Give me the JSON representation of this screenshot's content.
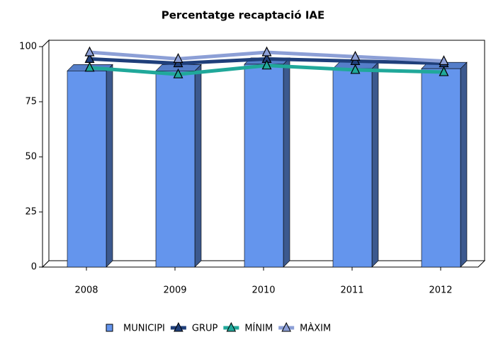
{
  "chart_data": {
    "type": "bar",
    "title": "Percentatge recaptació IAE",
    "categories": [
      "2008",
      "2009",
      "2010",
      "2011",
      "2012"
    ],
    "series": [
      {
        "name": "MUNICIPI",
        "color": "#6495ed",
        "values": [
          89,
          89,
          92,
          90,
          90
        ]
      },
      {
        "name": "GRUP",
        "color": "#1f3f7a",
        "values": [
          93,
          91,
          93,
          92,
          91
        ]
      },
      {
        "name": "MÍNIM",
        "color": "#20a89a",
        "values": [
          89,
          86,
          90,
          88,
          87
        ]
      },
      {
        "name": "MÀXIM",
        "color": "#8c9fd6",
        "values": [
          96,
          93,
          96,
          94,
          92
        ]
      }
    ],
    "ylim": [
      0,
      100
    ],
    "yticks": [
      0,
      25,
      50,
      75,
      100
    ]
  }
}
